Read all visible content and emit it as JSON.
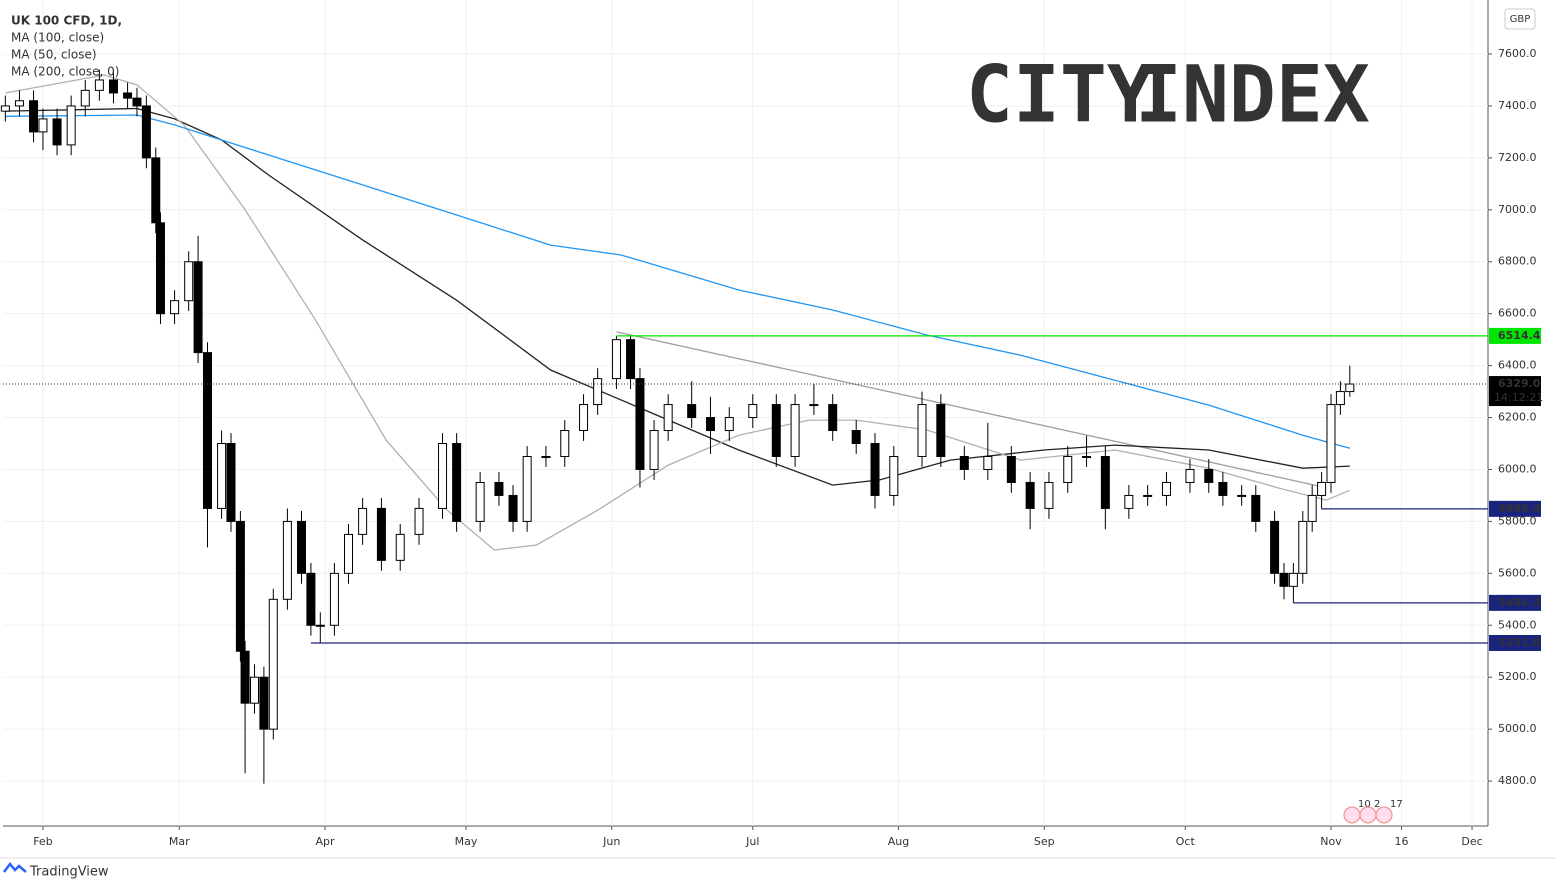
{
  "chart_data": {
    "type": "candlestick",
    "title": "UK 100 CFD, 1D,",
    "currency": "GBP",
    "logo": {
      "left": "CITY",
      "right": "INDEX"
    },
    "footer": "TradingView",
    "x": [
      24,
      27,
      30,
      32,
      35,
      38,
      41,
      44,
      47,
      50,
      52,
      54,
      56,
      57,
      60,
      63,
      65,
      67,
      70,
      72,
      74,
      75,
      77,
      79,
      81,
      84,
      87,
      89,
      91,
      94,
      97,
      100,
      104,
      108,
      112,
      117,
      120,
      125,
      129,
      132,
      135,
      139,
      143,
      147,
      150,
      154,
      157,
      159,
      162,
      165,
      170,
      174,
      178,
      183,
      188,
      192,
      196,
      200,
      205,
      209,
      213,
      219,
      223,
      228,
      233,
      238,
      242,
      246,
      250,
      254,
      258,
      263,
      267,
      271,
      276,
      280,
      283,
      287,
      290,
      294,
      296,
      298,
      300,
      302,
      304,
      306,
      308,
      310
    ],
    "open": [
      7380,
      7400,
      7420,
      7300,
      7350,
      7250,
      7400,
      7460,
      7500,
      7450,
      7430,
      7400,
      7200,
      6950,
      6600,
      6650,
      6800,
      6450,
      5850,
      6100,
      5800,
      5300,
      5100,
      5200,
      5000,
      5500,
      5800,
      5600,
      5400,
      5400,
      5600,
      5750,
      5850,
      5650,
      5750,
      5850,
      6100,
      5800,
      5950,
      5900,
      5800,
      6050,
      6050,
      6150,
      6250,
      6350,
      6500,
      6350,
      6000,
      6150,
      6250,
      6200,
      6150,
      6200,
      6250,
      6050,
      6250,
      6250,
      6150,
      6100,
      5900,
      6050,
      6250,
      6050,
      6000,
      6050,
      5950,
      5850,
      5950,
      6050,
      6050,
      5850,
      5900,
      5900,
      5950,
      6000,
      5950,
      5900,
      5900,
      5800,
      5600,
      5550,
      5600,
      5800,
      5900,
      5950,
      6250,
      6300
    ],
    "high": [
      7440,
      7460,
      7460,
      7390,
      7390,
      7440,
      7500,
      7540,
      7540,
      7490,
      7470,
      7440,
      7240,
      6990,
      6690,
      6840,
      6900,
      6490,
      6150,
      6140,
      5840,
      5340,
      5250,
      5240,
      5540,
      5850,
      5840,
      5640,
      5450,
      5640,
      5790,
      5890,
      5890,
      5790,
      5890,
      6140,
      6140,
      5990,
      5990,
      5940,
      6090,
      6090,
      6190,
      6290,
      6390,
      6514.4,
      6514.4,
      6390,
      6190,
      6290,
      6340,
      6280,
      6240,
      6290,
      6290,
      6290,
      6330,
      6290,
      6190,
      6140,
      6090,
      6300,
      6290,
      6090,
      6180,
      6090,
      5990,
      5990,
      6090,
      6130,
      6090,
      5940,
      5940,
      5990,
      6040,
      6040,
      5990,
      5940,
      5940,
      5840,
      5640,
      5640,
      5840,
      5940,
      5990,
      6290,
      6340,
      6400
    ],
    "low": [
      7340,
      7360,
      7260,
      7230,
      7210,
      7210,
      7360,
      7420,
      7410,
      7390,
      7360,
      7160,
      6910,
      6560,
      6560,
      6610,
      6410,
      5700,
      5810,
      5760,
      5260,
      4830,
      5060,
      4790,
      4960,
      5460,
      5560,
      5360,
      5331.8,
      5360,
      5560,
      5710,
      5610,
      5610,
      5710,
      5810,
      5760,
      5760,
      5860,
      5760,
      5760,
      6010,
      6010,
      6110,
      6210,
      6310,
      6310,
      5930,
      5960,
      6110,
      6160,
      6060,
      6110,
      6160,
      6010,
      6010,
      6210,
      6110,
      6060,
      5850,
      5860,
      6010,
      6010,
      5960,
      5960,
      5910,
      5770,
      5810,
      5910,
      6010,
      5770,
      5810,
      5860,
      5860,
      5910,
      5910,
      5860,
      5860,
      5760,
      5560,
      5500,
      5486.3,
      5560,
      5760,
      5848.4,
      5910,
      6210,
      6280
    ],
    "close": [
      7400,
      7420,
      7300,
      7350,
      7250,
      7400,
      7460,
      7500,
      7450,
      7430,
      7400,
      7200,
      6950,
      6600,
      6650,
      6800,
      6450,
      5850,
      6100,
      5800,
      5300,
      5100,
      5200,
      5000,
      5500,
      5800,
      5600,
      5400,
      5400,
      5600,
      5750,
      5850,
      5650,
      5750,
      5850,
      6100,
      5800,
      5950,
      5900,
      5800,
      6050,
      6050,
      6150,
      6250,
      6350,
      6500,
      6350,
      6000,
      6150,
      6250,
      6200,
      6150,
      6200,
      6250,
      6050,
      6250,
      6250,
      6150,
      6100,
      5900,
      6050,
      6250,
      6050,
      6000,
      6050,
      5950,
      5850,
      5950,
      6050,
      6050,
      5850,
      5900,
      5900,
      5950,
      6000,
      5950,
      5900,
      5900,
      5800,
      5600,
      5550,
      5600,
      5800,
      5900,
      5950,
      6250,
      6300,
      6329
    ],
    "series": [
      {
        "name": "MA (100, close)",
        "color": "#222222",
        "x": [
          24,
          52,
          60,
          70,
          80,
          100,
          120,
          140,
          160,
          180,
          200,
          210,
          225,
          245,
          260,
          280,
          300,
          310
        ],
        "values": [
          7380,
          7390,
          7350,
          7269,
          7134,
          6884,
          6652,
          6383,
          6229,
          6075,
          5940,
          5960,
          6036,
          6075,
          6094,
          6075,
          6005,
          6013
        ]
      },
      {
        "name": "MA (50, close)",
        "color": "#b0b0b0",
        "x": [
          24,
          45,
          52,
          62,
          75,
          90,
          105,
          118,
          128,
          137,
          150,
          165,
          180,
          195,
          205,
          220,
          240,
          260,
          280,
          295,
          305,
          310
        ],
        "values": [
          7450,
          7519,
          7481,
          7327,
          7000,
          6575,
          6113,
          5843,
          5690,
          5709,
          5843,
          6017,
          6132,
          6190,
          6190,
          6152,
          6036,
          6075,
          6005,
          5928,
          5882,
          5920
        ]
      },
      {
        "name": "MA (200, close, 0)",
        "color": "#2196f3",
        "x": [
          24,
          52,
          60,
          80,
          100,
          120,
          140,
          155,
          180,
          200,
          220,
          240,
          260,
          280,
          300,
          310
        ],
        "values": [
          7360,
          7365,
          7327,
          7211,
          7096,
          6980,
          6864,
          6826,
          6691,
          6614,
          6518,
          6440,
          6344,
          6248,
          6132,
          6082
        ]
      }
    ],
    "trendline": {
      "color": "#a0a0a0",
      "x": [
        154,
        305
      ],
      "values": [
        6530,
        5930
      ]
    },
    "levels": [
      {
        "value": 6514.4,
        "start": 154,
        "color": "#00e600"
      },
      {
        "value": 5848.4,
        "start": 304,
        "color": "#1a237e"
      },
      {
        "value": 5486.3,
        "start": 298,
        "color": "#1a237e"
      },
      {
        "value": 5331.8,
        "start": 89,
        "color": "#1a237e"
      }
    ],
    "last": {
      "value": 6329,
      "label": "6329.0"
    },
    "countdown": "14:12:21",
    "event_labels": [
      "10",
      "2",
      "17"
    ],
    "xlim": [
      23.5,
      339.4
    ],
    "xticks": [
      {
        "value": 32,
        "label": "Feb"
      },
      {
        "value": 61,
        "label": "Mar"
      },
      {
        "value": 92,
        "label": "Apr"
      },
      {
        "value": 122,
        "label": "May"
      },
      {
        "value": 153,
        "label": "Jun"
      },
      {
        "value": 183,
        "label": "Jul"
      },
      {
        "value": 214,
        "label": "Aug"
      },
      {
        "value": 245,
        "label": "Sep"
      },
      {
        "value": 275,
        "label": "Oct"
      },
      {
        "value": 306,
        "label": "Nov"
      },
      {
        "value": 321,
        "label": "16"
      },
      {
        "value": 336,
        "label": "Dec"
      }
    ],
    "ylim": [
      4627,
      7808
    ],
    "yticks": [
      {
        "value": 4800,
        "label": "4800.0"
      },
      {
        "value": 5000,
        "label": "5000.0"
      },
      {
        "value": 5200,
        "label": "5200.0"
      },
      {
        "value": 5400,
        "label": "5400.0"
      },
      {
        "value": 5600,
        "label": "5600.0"
      },
      {
        "value": 5800,
        "label": "5800.0"
      },
      {
        "value": 6000,
        "label": "6000.0"
      },
      {
        "value": 6200,
        "label": "6200.0"
      },
      {
        "value": 6400,
        "label": "6400.0"
      },
      {
        "value": 6600,
        "label": "6600.0"
      },
      {
        "value": 6800,
        "label": "6800.0"
      },
      {
        "value": 7000,
        "label": "7000.0"
      },
      {
        "value": 7200,
        "label": "7200.0"
      },
      {
        "value": 7400,
        "label": "7400.0"
      },
      {
        "value": 7600,
        "label": "7600.0"
      }
    ],
    "up_color": "#ffffff",
    "down_color": "#000000",
    "grid": true
  }
}
